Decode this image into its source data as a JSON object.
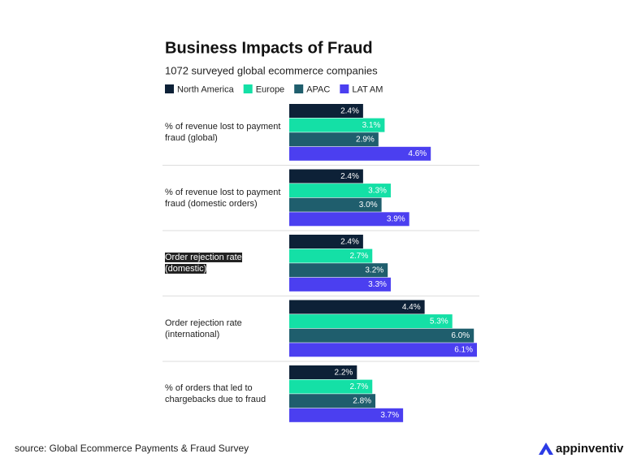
{
  "chart_data": {
    "type": "hbar",
    "title": "Business Impacts of Fraud",
    "subtitle": "1072 surveyed global ecommerce companies",
    "categories": [
      "% of revenue lost to payment fraud (global)",
      "% of revenue lost to payment fraud (domestic orders)",
      "Order rejection rate (domestic)",
      "Order rejection rate (international)",
      "% of orders that led to chargebacks due to fraud"
    ],
    "series": [
      {
        "name": "North America",
        "color": "#0d2137",
        "values": [
          2.4,
          2.4,
          2.4,
          4.4,
          2.2
        ],
        "value_labels": [
          "2.4%",
          "2.4%",
          "2.4%",
          "4.4%",
          "2.2%"
        ]
      },
      {
        "name": "Europe",
        "color": "#14e0a6",
        "values": [
          3.1,
          3.3,
          2.7,
          5.3,
          2.7
        ],
        "value_labels": [
          "3.1%",
          "3.3%",
          "2.7%",
          "5.3%",
          "2.7%"
        ]
      },
      {
        "name": "APAC",
        "color": "#1f5e6d",
        "values": [
          2.9,
          3.0,
          3.2,
          6.0,
          2.8
        ],
        "value_labels": [
          "2.9%",
          "3.0%",
          "3.2%",
          "6.0%",
          "2.8%"
        ]
      },
      {
        "name": "LAT AM",
        "color": "#4b3ff0",
        "values": [
          4.6,
          3.9,
          3.3,
          6.1,
          3.7
        ],
        "value_labels": [
          "4.6%",
          "3.9%",
          "3.3%",
          "6.1%",
          "3.7%"
        ]
      }
    ],
    "source": "source: Global Ecommerce Payments & Fraud Survey",
    "brand": "appinventiv"
  }
}
